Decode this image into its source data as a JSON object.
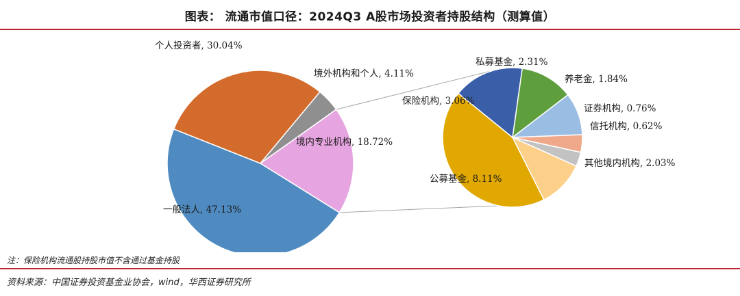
{
  "header": {
    "title": "图表： 流通市值口径：2024Q3 A股市场投资者持股结构（测算值）"
  },
  "footer": {
    "note": "注：保险机构流通股持股市值不含通过基金持股",
    "source": "资料来源：中国证券投资基金业协会，wind，华西证券研究所"
  },
  "chart_data": [
    {
      "type": "pie",
      "slices": [
        {
          "label": "个人投资者",
          "value": 30.04,
          "display": "个人投资者, 30.04%",
          "color": "#d36b2c"
        },
        {
          "label": "境外机构和个人",
          "value": 4.11,
          "display": "境外机构和个人, 4.11%",
          "color": "#8f8f8f"
        },
        {
          "label": "境内专业机构",
          "value": 18.72,
          "display": "境内专业机构, 18.72%",
          "color": "#e6a5e0"
        },
        {
          "label": "一般法人",
          "value": 47.13,
          "display": "一般法人, 47.13%",
          "color": "#4f8bc0"
        }
      ]
    },
    {
      "type": "pie",
      "slices": [
        {
          "label": "私募基金",
          "value": 2.31,
          "display": "私募基金, 2.31%",
          "color": "#5f9e3c"
        },
        {
          "label": "养老金",
          "value": 1.84,
          "display": "养老金, 1.84%",
          "color": "#9abde3"
        },
        {
          "label": "证券机构",
          "value": 0.76,
          "display": "证券机构, 0.76%",
          "color": "#f0a88a"
        },
        {
          "label": "信托机构",
          "value": 0.62,
          "display": "信托机构, 0.62%",
          "color": "#c2c2c2"
        },
        {
          "label": "其他境内机构",
          "value": 2.03,
          "display": "其他境内机构, 2.03%",
          "color": "#fdd08a"
        },
        {
          "label": "公募基金",
          "value": 8.11,
          "display": "公募基金, 8.11%",
          "color": "#e0a800"
        },
        {
          "label": "保险机构",
          "value": 3.06,
          "display": "保险机构, 3.06%",
          "color": "#3a5fa8"
        }
      ]
    }
  ]
}
